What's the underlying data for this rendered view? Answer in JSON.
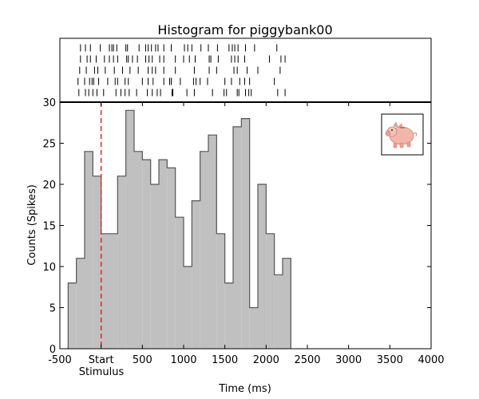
{
  "chart_data": {
    "type": "bar",
    "title": "Histogram for piggybank00",
    "xlabel": "Time (ms)",
    "ylabel": "Counts (Spikes)",
    "xlim": [
      -500,
      4000
    ],
    "ylim": [
      0,
      30
    ],
    "x_ticks": [
      -500,
      0,
      500,
      1000,
      1500,
      2000,
      2500,
      3000,
      3500,
      4000
    ],
    "x_tick_labels": [
      "-500",
      "Start",
      "500",
      "1000",
      "1500",
      "2000",
      "2500",
      "3000",
      "3500",
      "4000"
    ],
    "x_tick_sublabel": "Stimulus",
    "y_ticks": [
      0,
      5,
      10,
      15,
      20,
      25,
      30
    ],
    "bin_width": 100,
    "bins_start": [
      -400,
      -300,
      -200,
      -100,
      0,
      100,
      200,
      300,
      400,
      500,
      600,
      700,
      800,
      900,
      1000,
      1100,
      1200,
      1300,
      1400,
      1500,
      1600,
      1700,
      1800,
      1900,
      2000,
      2100,
      2200
    ],
    "values": [
      8,
      11,
      24,
      21,
      14,
      14,
      21,
      29,
      24,
      23,
      20,
      23,
      22,
      16,
      10,
      18,
      24,
      26,
      14,
      8,
      27,
      28,
      5,
      20,
      14,
      9,
      11
    ],
    "stimulus_marker": {
      "x": 0,
      "style": "dashed",
      "color": "#e8202a"
    },
    "bar_color": "#c0c0c0",
    "edge_color": "#555555",
    "raster": {
      "rows": [
        [
          -250,
          -190,
          -130,
          -10,
          100,
          130,
          150,
          190,
          300,
          320,
          460,
          540,
          570,
          610,
          660,
          690,
          760,
          850,
          1010,
          1050,
          1100,
          1210,
          1300,
          1410,
          1550,
          1590,
          1620,
          1660,
          1750,
          1860,
          2130
        ],
        [
          -250,
          -170,
          -130,
          -60,
          40,
          100,
          150,
          200,
          310,
          330,
          380,
          440,
          540,
          580,
          620,
          710,
          760,
          900,
          1000,
          1070,
          1140,
          1310,
          1330,
          1420,
          1580,
          1620,
          1660,
          1740,
          2040,
          2180,
          2230
        ],
        [
          -260,
          -180,
          -80,
          -40,
          50,
          160,
          260,
          350,
          450,
          570,
          620,
          660,
          760,
          900,
          1130,
          1310,
          1400,
          1610,
          1650,
          1770,
          1900,
          2170
        ],
        [
          -280,
          -200,
          -140,
          -110,
          -90,
          -30,
          80,
          170,
          200,
          290,
          330,
          500,
          570,
          630,
          760,
          830,
          850,
          960,
          1120,
          1150,
          1200,
          1290,
          1500,
          1580,
          1680,
          1740,
          1800,
          2100
        ],
        [
          -270,
          -190,
          -150,
          -100,
          -50,
          30,
          180,
          240,
          290,
          340,
          430,
          560,
          620,
          680,
          720,
          860,
          870,
          1040,
          1130,
          1350,
          1490,
          1520,
          1650,
          1670,
          1750,
          1790,
          1820,
          2140,
          2230
        ]
      ]
    },
    "legend": {
      "placement": "top-right",
      "icon": "piggy-bank-icon"
    }
  }
}
